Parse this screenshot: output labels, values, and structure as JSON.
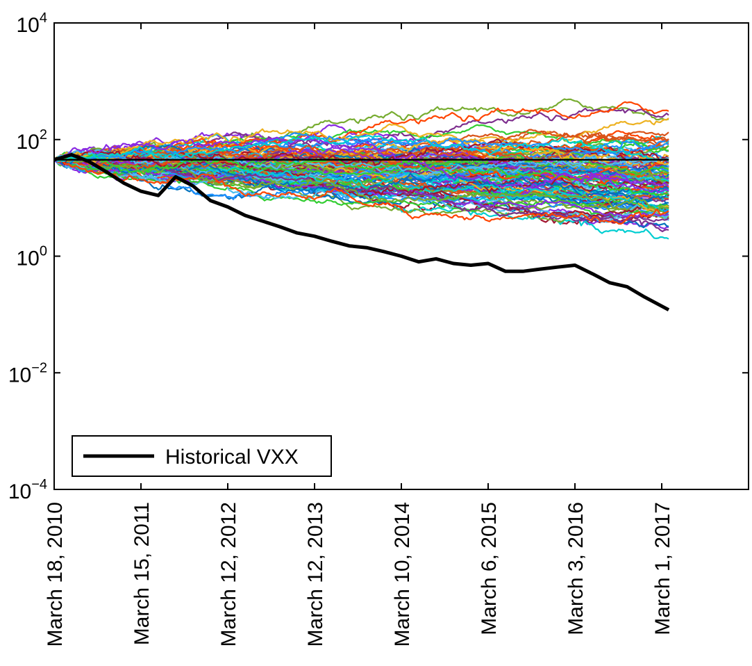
{
  "chart_data": {
    "type": "line",
    "yscale": "log",
    "ylim": [
      0.0001,
      10000
    ],
    "y_ticks": [
      {
        "value": 0.0001,
        "base": "10",
        "exp": "−4"
      },
      {
        "value": 0.01,
        "base": "10",
        "exp": "−2"
      },
      {
        "value": 1,
        "base": "10",
        "exp": "0"
      },
      {
        "value": 100,
        "base": "10",
        "exp": "2"
      },
      {
        "value": 10000,
        "base": "10",
        "exp": "4"
      }
    ],
    "x_tick_labels": [
      "March 18, 2010",
      "March 15, 2011",
      "March 12, 2012",
      "March 12, 2013",
      "March 10, 2014",
      "March 6, 2015",
      "March 3, 2016",
      "March 1, 2017"
    ],
    "xlim_trading_days": [
      0,
      2000
    ],
    "x_tick_trading_days": [
      0,
      250,
      500,
      750,
      1000,
      1250,
      1500,
      1750
    ],
    "last_trading_day": 1770,
    "legend": {
      "position": "bottom-left",
      "entries": [
        "Historical VXX"
      ]
    },
    "grid": false,
    "colors": {
      "historical": "#000000",
      "simulations": [
        "#0072BD",
        "#D95319",
        "#EDB120",
        "#7E2F8E",
        "#77AC30",
        "#4DBEEE",
        "#A2142F",
        "#1E90FF",
        "#FF4500",
        "#32CD32",
        "#8A2BE2",
        "#00CED1"
      ]
    },
    "series": [
      {
        "name": "Historical VXX",
        "x": [
          0,
          50,
          100,
          150,
          200,
          250,
          300,
          350,
          400,
          450,
          500,
          550,
          600,
          650,
          700,
          750,
          800,
          850,
          900,
          950,
          1000,
          1050,
          1100,
          1150,
          1200,
          1250,
          1300,
          1350,
          1400,
          1450,
          1500,
          1550,
          1600,
          1650,
          1700,
          1770
        ],
        "y": [
          45,
          55,
          42,
          28,
          18,
          13,
          11,
          23,
          16,
          9,
          7,
          5,
          4,
          3.2,
          2.5,
          2.2,
          1.8,
          1.5,
          1.4,
          1.2,
          1.0,
          0.8,
          0.9,
          0.75,
          0.7,
          0.75,
          0.55,
          0.55,
          0.6,
          0.65,
          0.7,
          0.5,
          0.35,
          0.3,
          0.2,
          0.12
        ]
      },
      {
        "name": "",
        "x": [
          0,
          1770
        ],
        "y": [
          45,
          45
        ]
      }
    ],
    "simulated_paths": {
      "count": 120,
      "start_value": 45
    }
  }
}
